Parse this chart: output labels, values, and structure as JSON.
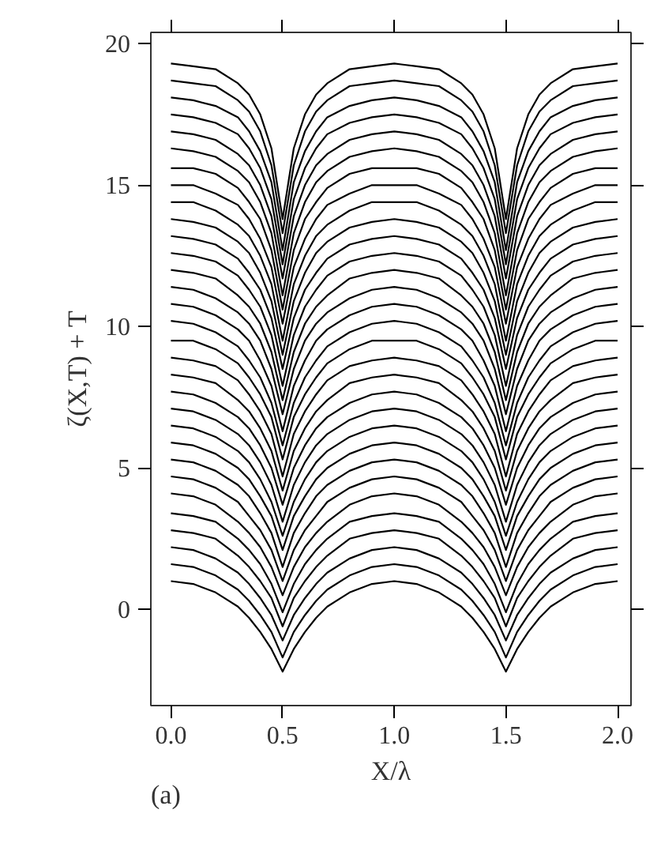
{
  "chart_data": {
    "type": "line",
    "xlabel": "X/λ",
    "ylabel": "ζ(X,T) + T",
    "annotations": [
      "(a)"
    ],
    "grid": false,
    "xlim": [
      -0.09,
      2.06
    ],
    "ylim": [
      -3.4,
      20.4
    ],
    "xticks": [
      {
        "value": 0,
        "label": "0.0"
      },
      {
        "value": 0.5,
        "label": "0.5"
      },
      {
        "value": 1,
        "label": "1.0"
      },
      {
        "value": 1.5,
        "label": "1.5"
      },
      {
        "value": 2,
        "label": "2.0"
      }
    ],
    "yticks": [
      0,
      5,
      10,
      15,
      20
    ],
    "x": [
      0,
      0.1,
      0.2,
      0.3,
      0.35,
      0.4,
      0.45,
      0.5,
      0.55,
      0.6,
      0.65,
      0.7,
      0.8,
      0.9,
      1.0,
      1.1,
      1.2,
      1.3,
      1.35,
      1.4,
      1.45,
      1.5,
      1.55,
      1.6,
      1.65,
      1.7,
      1.8,
      1.9,
      2.0
    ],
    "series": [
      {
        "color": "#000000",
        "values": [
          1.0,
          0.9,
          0.6,
          0.1,
          -0.3,
          -0.8,
          -1.4,
          -2.2,
          -1.4,
          -0.8,
          -0.3,
          0.1,
          0.6,
          0.9,
          1.0,
          0.9,
          0.6,
          0.1,
          -0.3,
          -0.8,
          -1.4,
          -2.2,
          -1.4,
          -0.8,
          -0.3,
          0.1,
          0.6,
          0.9,
          1.0
        ]
      },
      {
        "color": "#000000",
        "values": [
          1.6,
          1.5,
          1.2,
          0.7,
          0.3,
          -0.2,
          -0.8,
          -1.7,
          -0.8,
          -0.2,
          0.3,
          0.7,
          1.2,
          1.5,
          1.6,
          1.5,
          1.2,
          0.7,
          0.3,
          -0.2,
          -0.8,
          -1.7,
          -0.8,
          -0.2,
          0.3,
          0.7,
          1.2,
          1.5,
          1.6
        ]
      },
      {
        "color": "#000000",
        "values": [
          2.2,
          2.1,
          1.8,
          1.3,
          0.9,
          0.4,
          -0.2,
          -1.1,
          -0.2,
          0.4,
          0.9,
          1.3,
          1.8,
          2.1,
          2.2,
          2.1,
          1.8,
          1.3,
          0.9,
          0.4,
          -0.2,
          -1.1,
          -0.2,
          0.4,
          0.9,
          1.3,
          1.8,
          2.1,
          2.2
        ]
      },
      {
        "color": "#000000",
        "values": [
          2.8,
          2.7,
          2.5,
          1.9,
          1.5,
          1.0,
          0.4,
          -0.6,
          0.4,
          1.0,
          1.5,
          1.9,
          2.5,
          2.7,
          2.8,
          2.7,
          2.5,
          1.9,
          1.5,
          1.0,
          0.4,
          -0.6,
          0.4,
          1.0,
          1.5,
          1.9,
          2.5,
          2.7,
          2.8
        ]
      },
      {
        "color": "#000000",
        "values": [
          3.4,
          3.3,
          3.1,
          2.5,
          2.1,
          1.6,
          0.9,
          -0.1,
          0.9,
          1.6,
          2.1,
          2.5,
          3.1,
          3.3,
          3.4,
          3.3,
          3.1,
          2.5,
          2.1,
          1.6,
          0.9,
          -0.1,
          0.9,
          1.6,
          2.1,
          2.5,
          3.1,
          3.3,
          3.4
        ]
      },
      {
        "color": "#000000",
        "values": [
          4.1,
          4.0,
          3.7,
          3.1,
          2.7,
          2.2,
          1.5,
          0.5,
          1.5,
          2.2,
          2.7,
          3.1,
          3.7,
          4.0,
          4.1,
          4.0,
          3.7,
          3.1,
          2.7,
          2.2,
          1.5,
          0.5,
          1.5,
          2.2,
          2.7,
          3.1,
          3.7,
          4.0,
          4.1
        ]
      },
      {
        "color": "#000000",
        "values": [
          4.7,
          4.6,
          4.3,
          3.8,
          3.3,
          2.8,
          2.1,
          1.0,
          2.1,
          2.8,
          3.3,
          3.8,
          4.3,
          4.6,
          4.7,
          4.6,
          4.3,
          3.8,
          3.3,
          2.8,
          2.1,
          1.0,
          2.1,
          2.8,
          3.3,
          3.8,
          4.3,
          4.6,
          4.7
        ]
      },
      {
        "color": "#000000",
        "values": [
          5.3,
          5.2,
          4.9,
          4.4,
          4.0,
          3.4,
          2.7,
          1.5,
          2.7,
          3.4,
          4.0,
          4.4,
          4.9,
          5.2,
          5.3,
          5.2,
          4.9,
          4.4,
          4.0,
          3.4,
          2.7,
          1.5,
          2.7,
          3.4,
          4.0,
          4.4,
          4.9,
          5.2,
          5.3
        ]
      },
      {
        "color": "#000000",
        "values": [
          5.9,
          5.8,
          5.5,
          5.0,
          4.6,
          4.0,
          3.3,
          2.1,
          3.3,
          4.0,
          4.6,
          5.0,
          5.5,
          5.8,
          5.9,
          5.8,
          5.5,
          5.0,
          4.6,
          4.0,
          3.3,
          2.1,
          3.3,
          4.0,
          4.6,
          5.0,
          5.5,
          5.8,
          5.9
        ]
      },
      {
        "color": "#000000",
        "values": [
          6.5,
          6.4,
          6.1,
          5.6,
          5.2,
          4.6,
          3.8,
          2.6,
          3.8,
          4.6,
          5.2,
          5.6,
          6.1,
          6.4,
          6.5,
          6.4,
          6.1,
          5.6,
          5.2,
          4.6,
          3.8,
          2.6,
          3.8,
          4.6,
          5.2,
          5.6,
          6.1,
          6.4,
          6.5
        ]
      },
      {
        "color": "#000000",
        "values": [
          7.1,
          7.0,
          6.7,
          6.2,
          5.8,
          5.2,
          4.4,
          3.1,
          4.4,
          5.2,
          5.8,
          6.2,
          6.7,
          7.0,
          7.1,
          7.0,
          6.7,
          6.2,
          5.8,
          5.2,
          4.4,
          3.1,
          4.4,
          5.2,
          5.8,
          6.2,
          6.7,
          7.0,
          7.1
        ]
      },
      {
        "color": "#000000",
        "values": [
          7.7,
          7.6,
          7.3,
          6.8,
          6.4,
          5.8,
          5.0,
          3.7,
          5.0,
          5.8,
          6.4,
          6.8,
          7.3,
          7.6,
          7.7,
          7.6,
          7.3,
          6.8,
          6.4,
          5.8,
          5.0,
          3.7,
          5.0,
          5.8,
          6.4,
          6.8,
          7.3,
          7.6,
          7.7
        ]
      },
      {
        "color": "#000000",
        "values": [
          8.3,
          8.2,
          8.0,
          7.4,
          7.0,
          6.4,
          5.6,
          4.2,
          5.6,
          6.4,
          7.0,
          7.4,
          8.0,
          8.2,
          8.3,
          8.2,
          8.0,
          7.4,
          7.0,
          6.4,
          5.6,
          4.2,
          5.6,
          6.4,
          7.0,
          7.4,
          8.0,
          8.2,
          8.3
        ]
      },
      {
        "color": "#000000",
        "values": [
          8.9,
          8.8,
          8.6,
          8.1,
          7.6,
          7.0,
          6.2,
          4.7,
          6.2,
          7.0,
          7.6,
          8.1,
          8.6,
          8.8,
          8.9,
          8.8,
          8.6,
          8.1,
          7.6,
          7.0,
          6.2,
          4.7,
          6.2,
          7.0,
          7.6,
          8.1,
          8.6,
          8.8,
          8.9
        ]
      },
      {
        "color": "#000000",
        "values": [
          9.5,
          9.5,
          9.2,
          8.7,
          8.2,
          7.6,
          6.8,
          5.3,
          6.8,
          7.6,
          8.2,
          8.7,
          9.2,
          9.5,
          9.5,
          9.5,
          9.2,
          8.7,
          8.2,
          7.6,
          6.8,
          5.3,
          6.8,
          7.6,
          8.2,
          8.7,
          9.2,
          9.5,
          9.5
        ]
      },
      {
        "color": "#000000",
        "values": [
          10.2,
          10.1,
          9.8,
          9.3,
          8.8,
          8.2,
          7.3,
          5.8,
          7.3,
          8.2,
          8.8,
          9.3,
          9.8,
          10.1,
          10.2,
          10.1,
          9.8,
          9.3,
          8.8,
          8.2,
          7.3,
          5.8,
          7.3,
          8.2,
          8.8,
          9.3,
          9.8,
          10.1,
          10.2
        ]
      },
      {
        "color": "#000000",
        "values": [
          10.8,
          10.7,
          10.4,
          9.9,
          9.5,
          8.8,
          7.9,
          6.3,
          7.9,
          8.8,
          9.5,
          9.9,
          10.4,
          10.7,
          10.8,
          10.7,
          10.4,
          9.9,
          9.5,
          8.8,
          7.9,
          6.3,
          7.9,
          8.8,
          9.5,
          9.9,
          10.4,
          10.7,
          10.8
        ]
      },
      {
        "color": "#000000",
        "values": [
          11.4,
          11.3,
          11.0,
          10.5,
          10.1,
          9.5,
          8.5,
          6.9,
          8.5,
          9.5,
          10.1,
          10.5,
          11.0,
          11.3,
          11.4,
          11.3,
          11.0,
          10.5,
          10.1,
          9.5,
          8.5,
          6.9,
          8.5,
          9.5,
          10.1,
          10.5,
          11.0,
          11.3,
          11.4
        ]
      },
      {
        "color": "#000000",
        "values": [
          12.0,
          11.9,
          11.7,
          11.1,
          10.7,
          10.1,
          9.1,
          7.4,
          9.1,
          10.1,
          10.7,
          11.1,
          11.7,
          11.9,
          12.0,
          11.9,
          11.7,
          11.1,
          10.7,
          10.1,
          9.1,
          7.4,
          9.1,
          10.1,
          10.7,
          11.1,
          11.7,
          11.9,
          12.0
        ]
      },
      {
        "color": "#000000",
        "values": [
          12.6,
          12.5,
          12.3,
          11.8,
          11.3,
          10.7,
          9.7,
          7.9,
          9.7,
          10.7,
          11.3,
          11.8,
          12.3,
          12.5,
          12.6,
          12.5,
          12.3,
          11.8,
          11.3,
          10.7,
          9.7,
          7.9,
          9.7,
          10.7,
          11.3,
          11.8,
          12.3,
          12.5,
          12.6
        ]
      },
      {
        "color": "#000000",
        "values": [
          13.2,
          13.1,
          12.9,
          12.4,
          11.9,
          11.3,
          10.3,
          8.5,
          10.3,
          11.3,
          11.9,
          12.4,
          12.9,
          13.1,
          13.2,
          13.1,
          12.9,
          12.4,
          11.9,
          11.3,
          10.3,
          8.5,
          10.3,
          11.3,
          11.9,
          12.4,
          12.9,
          13.1,
          13.2
        ]
      },
      {
        "color": "#000000",
        "values": [
          13.8,
          13.7,
          13.5,
          13.0,
          12.6,
          11.9,
          10.9,
          9.0,
          10.9,
          11.9,
          12.6,
          13.0,
          13.5,
          13.7,
          13.8,
          13.7,
          13.5,
          13.0,
          12.6,
          11.9,
          10.9,
          9.0,
          10.9,
          11.9,
          12.6,
          13.0,
          13.5,
          13.7,
          13.8
        ]
      },
      {
        "color": "#000000",
        "values": [
          14.4,
          14.4,
          14.1,
          13.6,
          13.2,
          12.5,
          11.5,
          9.5,
          11.5,
          12.5,
          13.2,
          13.6,
          14.1,
          14.4,
          14.4,
          14.4,
          14.1,
          13.6,
          13.2,
          12.5,
          11.5,
          9.5,
          11.5,
          12.5,
          13.2,
          13.6,
          14.1,
          14.4,
          14.4
        ]
      },
      {
        "color": "#000000",
        "values": [
          15.0,
          15.0,
          14.7,
          14.3,
          13.8,
          13.1,
          12.1,
          10.1,
          12.1,
          13.1,
          13.8,
          14.3,
          14.7,
          15.0,
          15.0,
          15.0,
          14.7,
          14.3,
          13.8,
          13.1,
          12.1,
          10.1,
          12.1,
          13.1,
          13.8,
          14.3,
          14.7,
          15.0,
          15.0
        ]
      },
      {
        "color": "#000000",
        "values": [
          15.6,
          15.6,
          15.4,
          14.9,
          14.4,
          13.8,
          12.7,
          10.6,
          12.7,
          13.8,
          14.4,
          14.9,
          15.4,
          15.6,
          15.6,
          15.6,
          15.4,
          14.9,
          14.4,
          13.8,
          12.7,
          10.6,
          12.7,
          13.8,
          14.4,
          14.9,
          15.4,
          15.6,
          15.6
        ]
      },
      {
        "color": "#000000",
        "values": [
          16.3,
          16.2,
          16.0,
          15.5,
          15.1,
          14.4,
          13.3,
          11.1,
          13.3,
          14.4,
          15.1,
          15.5,
          16.0,
          16.2,
          16.3,
          16.2,
          16.0,
          15.5,
          15.1,
          14.4,
          13.3,
          11.1,
          13.3,
          14.4,
          15.1,
          15.5,
          16.0,
          16.2,
          16.3
        ]
      },
      {
        "color": "#000000",
        "values": [
          16.9,
          16.8,
          16.6,
          16.1,
          15.7,
          15.0,
          13.9,
          11.7,
          13.9,
          15.0,
          15.7,
          16.1,
          16.6,
          16.8,
          16.9,
          16.8,
          16.6,
          16.1,
          15.7,
          15.0,
          13.9,
          11.7,
          13.9,
          15.0,
          15.7,
          16.1,
          16.6,
          16.8,
          16.9
        ]
      },
      {
        "color": "#000000",
        "values": [
          17.5,
          17.4,
          17.2,
          16.8,
          16.3,
          15.6,
          14.5,
          12.2,
          14.5,
          15.6,
          16.3,
          16.8,
          17.2,
          17.4,
          17.5,
          17.4,
          17.2,
          16.8,
          16.3,
          15.6,
          14.5,
          12.2,
          14.5,
          15.6,
          16.3,
          16.8,
          17.2,
          17.4,
          17.5
        ]
      },
      {
        "color": "#000000",
        "values": [
          18.1,
          18.0,
          17.8,
          17.4,
          16.9,
          16.2,
          15.1,
          12.7,
          15.1,
          16.2,
          16.9,
          17.4,
          17.8,
          18.0,
          18.1,
          18.0,
          17.8,
          17.4,
          16.9,
          16.2,
          15.1,
          12.7,
          15.1,
          16.2,
          16.9,
          17.4,
          17.8,
          18.0,
          18.1
        ]
      },
      {
        "color": "#000000",
        "values": [
          18.7,
          18.6,
          18.5,
          18.0,
          17.6,
          16.9,
          15.7,
          13.3,
          15.7,
          16.9,
          17.6,
          18.0,
          18.5,
          18.6,
          18.7,
          18.6,
          18.5,
          18.0,
          17.6,
          16.9,
          15.7,
          13.3,
          15.7,
          16.9,
          17.6,
          18.0,
          18.5,
          18.6,
          18.7
        ]
      },
      {
        "color": "#000000",
        "values": [
          19.3,
          19.2,
          19.1,
          18.6,
          18.2,
          17.5,
          16.3,
          13.8,
          16.3,
          17.5,
          18.2,
          18.6,
          19.1,
          19.2,
          19.3,
          19.2,
          19.1,
          18.6,
          18.2,
          17.5,
          16.3,
          13.8,
          16.3,
          17.5,
          18.2,
          18.6,
          19.1,
          19.2,
          19.3
        ]
      }
    ]
  }
}
